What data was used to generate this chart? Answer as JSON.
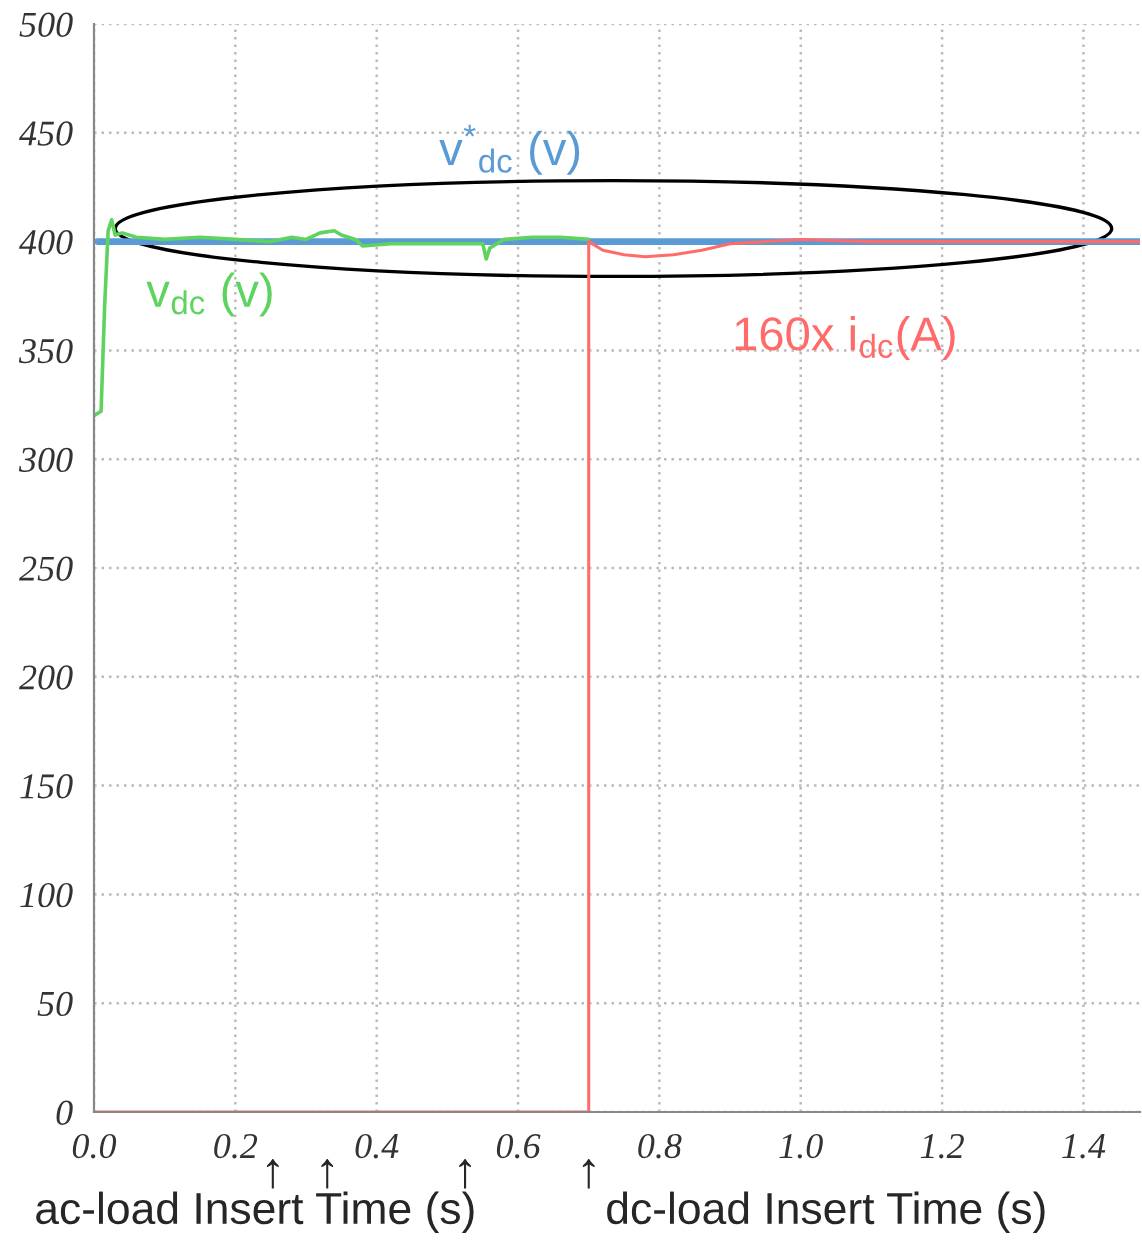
{
  "chart_data": {
    "type": "line",
    "xlim": [
      0,
      1.48
    ],
    "ylim": [
      0,
      500
    ],
    "xticks": [
      {
        "value": 0,
        "label": "0.0"
      },
      0.2,
      0.4,
      0.6,
      0.8,
      {
        "value": 1.0,
        "label": "1.0"
      },
      1.2,
      1.4
    ],
    "yticks": [
      0,
      50,
      100,
      150,
      200,
      250,
      300,
      350,
      400,
      450,
      500
    ],
    "grid": true,
    "legend": false,
    "series": [
      {
        "name": "v$^{*}$$_{dc}$ (v)",
        "color": "#5b9bd5",
        "x": [
          0.005,
          1.48
        ],
        "values": [
          400,
          400
        ]
      },
      {
        "name": "v$_{dc}$ (v)",
        "color": "#5fd35f",
        "x": [
          0.0,
          0.01,
          0.015,
          0.02,
          0.025,
          0.03,
          0.04,
          0.06,
          0.1,
          0.15,
          0.2,
          0.25,
          0.28,
          0.3,
          0.32,
          0.34,
          0.35,
          0.37,
          0.38,
          0.42,
          0.46,
          0.5,
          0.54,
          0.55,
          0.555,
          0.56,
          0.57,
          0.58,
          0.62,
          0.66,
          0.7
        ],
        "values": [
          320,
          322,
          370,
          405,
          410,
          403,
          404,
          402,
          401,
          402,
          401,
          400,
          402,
          401,
          404,
          405,
          403,
          401,
          398,
          399,
          399,
          399,
          399,
          399,
          392,
          397,
          399,
          401,
          402,
          402,
          401
        ]
      },
      {
        "name": "160x i$_{dc}$(A)",
        "color": "#ff6b6b",
        "x": [
          0.0,
          0.7,
          0.7,
          0.72,
          0.75,
          0.78,
          0.82,
          0.86,
          0.9,
          0.95,
          1.0,
          1.1,
          1.2,
          1.48
        ],
        "values": [
          0,
          0,
          400,
          396,
          394,
          393,
          394,
          396,
          399,
          400,
          401,
          400,
          400,
          400
        ]
      }
    ],
    "annotations": [
      {
        "text": "↑",
        "x": 0.253,
        "y": 0
      },
      {
        "text": "↑",
        "x": 0.33,
        "y": 0
      },
      {
        "text": "↑",
        "x": 0.525,
        "y": 0
      },
      {
        "text": "↑",
        "x": 0.7,
        "y": 0
      },
      "ac-load Insert Time (s)",
      "dc-load Insert Time (s)"
    ]
  }
}
